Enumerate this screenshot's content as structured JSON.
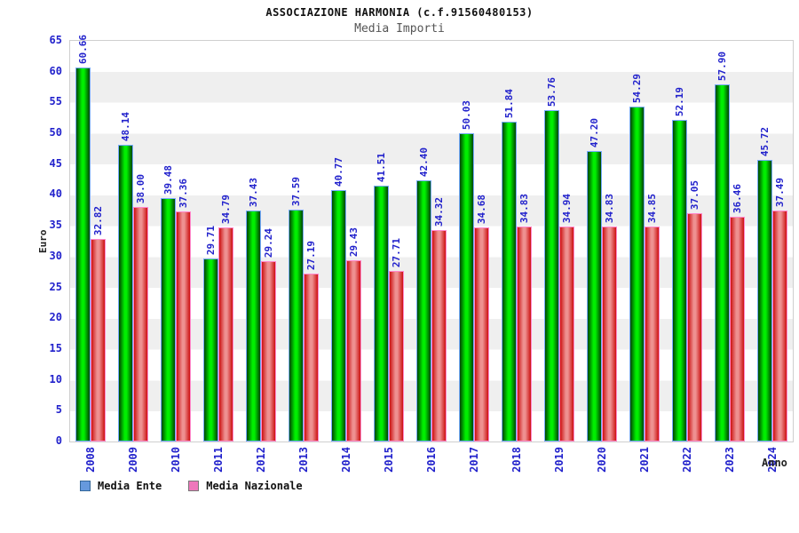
{
  "header": {
    "title": "ASSOCIAZIONE HARMONIA (c.f.91560480153)",
    "subtitle": "Media Importi"
  },
  "axes": {
    "y_label": "Euro",
    "x_label": "Anno",
    "y_ticks": [
      0,
      5,
      10,
      15,
      20,
      25,
      30,
      35,
      40,
      45,
      50,
      55,
      60,
      65
    ]
  },
  "legend": {
    "items": [
      {
        "label": "Media Ente"
      },
      {
        "label": "Media Nazionale"
      }
    ]
  },
  "colors": {
    "tick_text": "#2222cc",
    "value_label_text": "#2222cc",
    "ente_legend_fill": "#6699dd",
    "ente_legend_border": "#336699",
    "nazionale_legend_fill": "#ee77bb",
    "nazionale_legend_border": "#777777",
    "ente_bar_edge": "#004400",
    "ente_bar_mid": "#00ee00",
    "ente_bar_border": "#77aaff",
    "nazionale_bar_edge": "#cc1111",
    "nazionale_bar_mid": "#ee9090",
    "nazionale_bar_border": "#ff88cc",
    "band_gray": "#efefef",
    "plot_border": "#cfcfcf"
  },
  "chart_data": {
    "type": "bar",
    "title": "ASSOCIAZIONE HARMONIA (c.f.91560480153)",
    "subtitle": "Media Importi",
    "xlabel": "Anno",
    "ylabel": "Euro",
    "ylim": [
      0,
      65
    ],
    "ytick_step": 5,
    "grid": "horizontal-bands",
    "legend_position": "bottom-left",
    "categories": [
      "2008",
      "2009",
      "2010",
      "2011",
      "2012",
      "2013",
      "2014",
      "2015",
      "2016",
      "2017",
      "2018",
      "2019",
      "2020",
      "2021",
      "2022",
      "2023",
      "2024"
    ],
    "series": [
      {
        "name": "Media Ente",
        "values": [
          60.66,
          48.14,
          39.48,
          29.71,
          37.43,
          37.59,
          40.77,
          41.51,
          42.4,
          50.03,
          51.84,
          53.76,
          47.2,
          54.29,
          52.19,
          57.9,
          45.72
        ]
      },
      {
        "name": "Media Nazionale",
        "values": [
          32.82,
          38.0,
          37.36,
          34.79,
          29.24,
          27.19,
          29.43,
          27.71,
          34.32,
          34.68,
          34.83,
          34.94,
          34.83,
          34.85,
          37.05,
          36.46,
          37.49
        ]
      }
    ]
  }
}
